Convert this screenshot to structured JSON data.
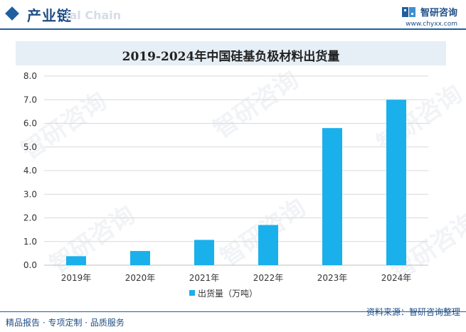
{
  "header": {
    "section_title": "产业链",
    "section_watermark": "ial Chain",
    "brand_name": "智研咨询",
    "brand_url": "www.chyxx.com"
  },
  "watermark_text": "智研咨询",
  "chart_data": {
    "type": "bar",
    "title": "2019-2024年中国硅基负极材料出货量",
    "categories": [
      "2019年",
      "2020年",
      "2021年",
      "2022年",
      "2023年",
      "2024年"
    ],
    "series": [
      {
        "name": "出货量（万吨）",
        "values": [
          0.38,
          0.6,
          1.07,
          1.7,
          5.8,
          7.0
        ]
      }
    ],
    "ylim": [
      0,
      8
    ],
    "yticks": [
      "0.0",
      "1.0",
      "2.0",
      "3.0",
      "4.0",
      "5.0",
      "6.0",
      "7.0",
      "8.0"
    ],
    "grid": true,
    "legend_position": "bottom",
    "bar_color": "#1ab0ec"
  },
  "footer": {
    "left": "精品报告 · 专项定制 · 品质服务",
    "source": "资料来源：智研咨询整理"
  }
}
